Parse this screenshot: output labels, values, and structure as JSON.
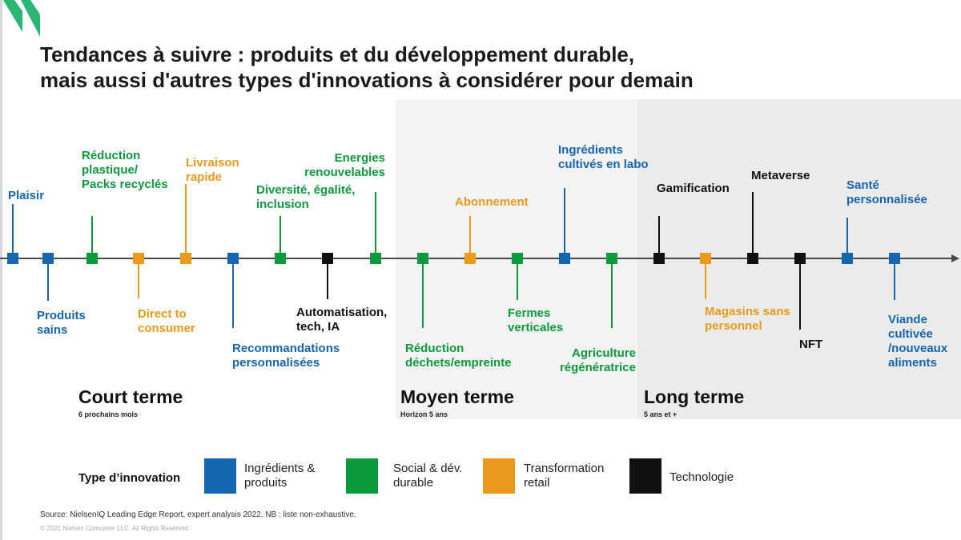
{
  "title": {
    "line1": "Tendances à suivre : produits et du développement durable,",
    "line2": "mais aussi d'autres types d'innovations à considérer pour demain"
  },
  "colors": {
    "ingredients": "#1565b0",
    "social": "#0c9a3c",
    "retail": "#ec9a1c",
    "tech": "#111111"
  },
  "trends": [
    {
      "name": "trend-plaisir",
      "category": "ingredients",
      "lines": [
        "Plaisir"
      ]
    },
    {
      "name": "trend-produits-sains",
      "category": "ingredients",
      "lines": [
        "Produits",
        "sains"
      ]
    },
    {
      "name": "trend-reduction-plastique",
      "category": "social",
      "lines": [
        "Réduction",
        "plastique/",
        "Packs recyclés"
      ]
    },
    {
      "name": "trend-direct-to-consumer",
      "category": "retail",
      "lines": [
        "Direct to",
        "consumer"
      ]
    },
    {
      "name": "trend-livraison-rapide",
      "category": "retail",
      "lines": [
        "Livraison",
        "rapide"
      ]
    },
    {
      "name": "trend-recommandations",
      "category": "ingredients",
      "lines": [
        "Recommandations",
        "personnalisées"
      ]
    },
    {
      "name": "trend-diversite",
      "category": "social",
      "lines": [
        "Diversité, égalité,",
        "inclusion"
      ]
    },
    {
      "name": "trend-automatisation",
      "category": "tech",
      "lines": [
        "Automatisation,",
        "tech, IA"
      ]
    },
    {
      "name": "trend-energies",
      "category": "social",
      "lines": [
        "Energies",
        "renouvelables"
      ]
    },
    {
      "name": "trend-reduction-dechets",
      "category": "social",
      "lines": [
        "Réduction",
        "déchets/empreinte"
      ]
    },
    {
      "name": "trend-abonnement",
      "category": "retail",
      "lines": [
        "Abonnement"
      ]
    },
    {
      "name": "trend-fermes-verticales",
      "category": "social",
      "lines": [
        "Fermes",
        "verticales"
      ]
    },
    {
      "name": "trend-ingredients-labo",
      "category": "ingredients",
      "lines": [
        "Ingrédients",
        "cultivés en labo"
      ]
    },
    {
      "name": "trend-agriculture",
      "category": "social",
      "lines": [
        "Agriculture",
        "régénératrice"
      ]
    },
    {
      "name": "trend-gamification",
      "category": "tech",
      "lines": [
        "Gamification"
      ]
    },
    {
      "name": "trend-magasins",
      "category": "retail",
      "lines": [
        "Magasins sans",
        "personnel"
      ]
    },
    {
      "name": "trend-metaverse",
      "category": "tech",
      "lines": [
        "Metaverse"
      ]
    },
    {
      "name": "trend-nft",
      "category": "tech",
      "lines": [
        "NFT"
      ]
    },
    {
      "name": "trend-sante",
      "category": "ingredients",
      "lines": [
        "Santé",
        "personnalisée"
      ]
    },
    {
      "name": "trend-viande",
      "category": "ingredients",
      "lines": [
        "Viande",
        "cultivée",
        "/nouveaux",
        "aliments"
      ]
    }
  ],
  "periods": [
    {
      "label": "Court terme",
      "sub": "6 prochains mois"
    },
    {
      "label": "Moyen terme",
      "sub": "Horizon 5 ans"
    },
    {
      "label": "Long terme",
      "sub": "5 ans et +"
    }
  ],
  "legend": {
    "title": "Type d’innovation",
    "items": [
      {
        "category": "ingredients",
        "lines": [
          "Ingrédients &",
          "produits"
        ]
      },
      {
        "category": "social",
        "lines": [
          "Social & dév.",
          "durable"
        ]
      },
      {
        "category": "retail",
        "lines": [
          "Transformation",
          "retail"
        ]
      },
      {
        "category": "tech",
        "lines": [
          "Technologie"
        ]
      }
    ]
  },
  "source": "Source: NielsenIQ Leading Edge Report, expert analysis 2022. NB : liste non-exhaustive.",
  "copyright": "© 2021 Nielsen Consumer LLC. All Rights Reserved."
}
